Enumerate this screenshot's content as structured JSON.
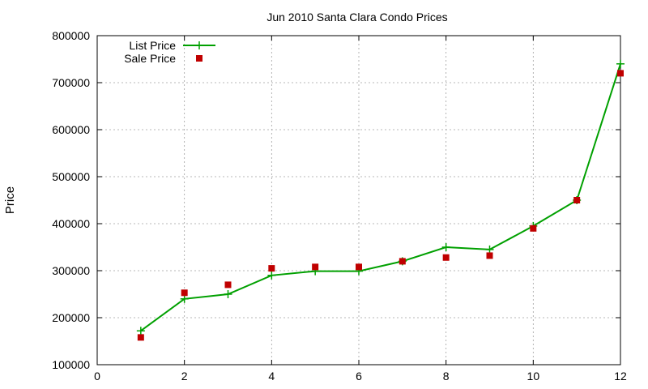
{
  "chart_data": {
    "type": "line",
    "title": "Jun 2010 Santa Clara Condo Prices",
    "xlabel": "",
    "ylabel": "Price",
    "xlim": [
      0,
      12
    ],
    "ylim": [
      100000,
      800000
    ],
    "x_ticks": [
      "0",
      "2",
      "4",
      "6",
      "8",
      "10",
      "12"
    ],
    "y_ticks": [
      "100000",
      "200000",
      "300000",
      "400000",
      "500000",
      "600000",
      "700000",
      "800000"
    ],
    "grid": true,
    "legend_position": "top-left",
    "series": [
      {
        "name": "List Price",
        "style": "line+crosses",
        "color": "#00a000",
        "x": [
          1,
          2,
          3,
          4,
          5,
          6,
          7,
          8,
          9,
          10,
          11,
          12
        ],
        "values": [
          172000,
          240000,
          250000,
          290000,
          299000,
          299000,
          320000,
          350000,
          345000,
          395000,
          450000,
          740000
        ]
      },
      {
        "name": "Sale Price",
        "style": "squares",
        "color": "#c00000",
        "x": [
          1,
          2,
          3,
          4,
          5,
          6,
          7,
          8,
          9,
          10,
          11,
          12
        ],
        "values": [
          158000,
          253000,
          270000,
          305000,
          308000,
          308000,
          320000,
          328000,
          332000,
          390000,
          450000,
          720000
        ]
      }
    ]
  }
}
